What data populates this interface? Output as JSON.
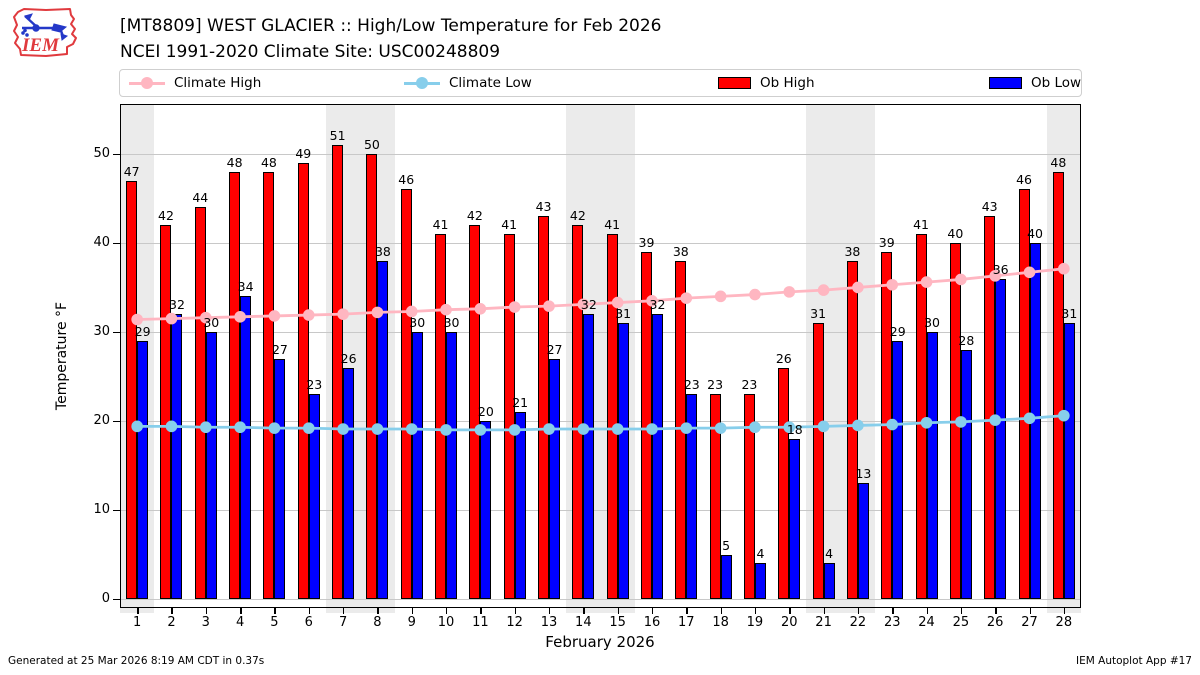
{
  "header": {
    "title": "[MT8809] WEST GLACIER :: High/Low Temperature for Feb 2026",
    "subtitle": "NCEI 1991-2020 Climate Site: USC00248809",
    "logo_text": "IEM"
  },
  "legend": [
    {
      "label": "Climate High",
      "type": "line",
      "color": "#FFB6C1"
    },
    {
      "label": "Climate Low",
      "type": "line",
      "color": "#87CEEB"
    },
    {
      "label": "Ob High",
      "type": "patch",
      "color": "#FF0000"
    },
    {
      "label": "Ob Low",
      "type": "patch",
      "color": "#0000FF"
    }
  ],
  "footer": {
    "left": "Generated at 25 Mar 2026 8:19 AM CDT in 0.37s",
    "right": "IEM Autoplot App #17"
  },
  "chart_data": {
    "type": "bar",
    "title": "[MT8809] WEST GLACIER :: High/Low Temperature for Feb 2026",
    "subtitle": "NCEI 1991-2020 Climate Site: USC00248809",
    "xlabel": "February 2026",
    "ylabel": "Temperature °F",
    "categories": [
      1,
      2,
      3,
      4,
      5,
      6,
      7,
      8,
      9,
      10,
      11,
      12,
      13,
      14,
      15,
      16,
      17,
      18,
      19,
      20,
      21,
      22,
      23,
      24,
      25,
      26,
      27,
      28
    ],
    "series": [
      {
        "name": "Ob High",
        "type": "bar",
        "color": "#FF0000",
        "values": [
          47,
          42,
          44,
          48,
          48,
          49,
          51,
          50,
          46,
          41,
          42,
          41,
          43,
          42,
          41,
          39,
          38,
          23,
          23,
          26,
          31,
          38,
          39,
          41,
          40,
          43,
          46,
          48
        ]
      },
      {
        "name": "Ob Low",
        "type": "bar",
        "color": "#0000FF",
        "values": [
          29,
          32,
          30,
          34,
          27,
          23,
          26,
          38,
          30,
          30,
          20,
          21,
          27,
          32,
          31,
          32,
          23,
          5,
          4,
          18,
          4,
          13,
          29,
          30,
          28,
          36,
          40,
          31
        ]
      },
      {
        "name": "Climate High",
        "type": "line",
        "color": "#FFB6C1",
        "values": [
          31.4,
          31.5,
          31.6,
          31.7,
          31.8,
          31.9,
          32.0,
          32.2,
          32.3,
          32.5,
          32.6,
          32.8,
          32.9,
          33.1,
          33.3,
          33.5,
          33.8,
          34.0,
          34.2,
          34.5,
          34.7,
          35.0,
          35.3,
          35.6,
          35.9,
          36.3,
          36.7,
          37.1
        ]
      },
      {
        "name": "Climate Low",
        "type": "line",
        "color": "#87CEEB",
        "values": [
          19.4,
          19.4,
          19.3,
          19.3,
          19.2,
          19.2,
          19.1,
          19.1,
          19.1,
          19.0,
          19.0,
          19.0,
          19.1,
          19.1,
          19.1,
          19.1,
          19.2,
          19.2,
          19.3,
          19.3,
          19.4,
          19.5,
          19.6,
          19.8,
          19.9,
          20.1,
          20.3,
          20.6
        ]
      }
    ],
    "ylim": [
      -1,
      55.6
    ],
    "yticks": [
      0,
      10,
      20,
      30,
      40,
      50
    ],
    "grid": true,
    "grid_color": "#C8C8C8",
    "weekend_band_days": [
      [
        1,
        1
      ],
      [
        7,
        8
      ],
      [
        14,
        15
      ],
      [
        21,
        22
      ],
      [
        28,
        28
      ]
    ],
    "band_color": "#EBEBEB",
    "legend_position": "top"
  }
}
